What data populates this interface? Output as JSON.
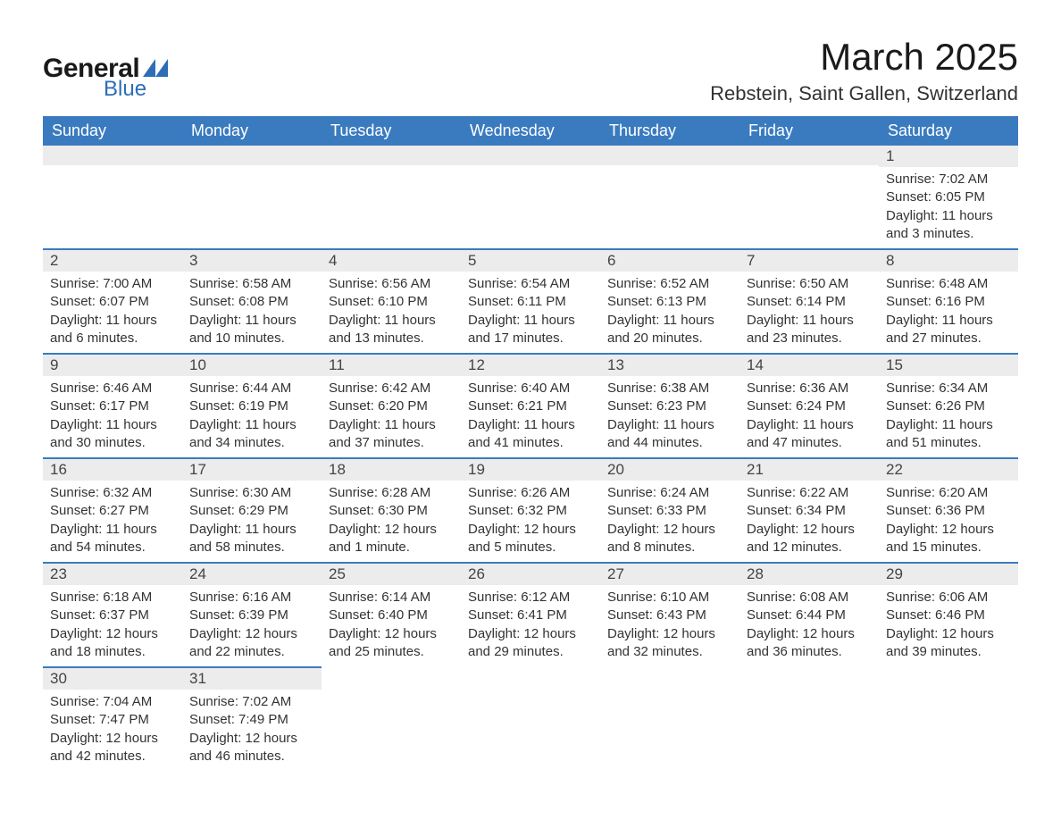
{
  "logo": {
    "text_general": "General",
    "text_blue": "Blue",
    "shape_color": "#2d6eb5"
  },
  "title": "March 2025",
  "location": "Rebstein, Saint Gallen, Switzerland",
  "colors": {
    "header_bg": "#3a7bbf",
    "header_text": "#ffffff",
    "daybar_bg": "#ececec",
    "daybar_border": "#3a7bbf",
    "body_text": "#333333",
    "page_bg": "#ffffff"
  },
  "typography": {
    "title_fontsize": 42,
    "location_fontsize": 22,
    "header_fontsize": 18,
    "daynum_fontsize": 17,
    "detail_fontsize": 15
  },
  "weekdays": [
    "Sunday",
    "Monday",
    "Tuesday",
    "Wednesday",
    "Thursday",
    "Friday",
    "Saturday"
  ],
  "weeks": [
    [
      null,
      null,
      null,
      null,
      null,
      null,
      {
        "n": "1",
        "sr": "Sunrise: 7:02 AM",
        "ss": "Sunset: 6:05 PM",
        "dl1": "Daylight: 11 hours",
        "dl2": "and 3 minutes."
      }
    ],
    [
      {
        "n": "2",
        "sr": "Sunrise: 7:00 AM",
        "ss": "Sunset: 6:07 PM",
        "dl1": "Daylight: 11 hours",
        "dl2": "and 6 minutes."
      },
      {
        "n": "3",
        "sr": "Sunrise: 6:58 AM",
        "ss": "Sunset: 6:08 PM",
        "dl1": "Daylight: 11 hours",
        "dl2": "and 10 minutes."
      },
      {
        "n": "4",
        "sr": "Sunrise: 6:56 AM",
        "ss": "Sunset: 6:10 PM",
        "dl1": "Daylight: 11 hours",
        "dl2": "and 13 minutes."
      },
      {
        "n": "5",
        "sr": "Sunrise: 6:54 AM",
        "ss": "Sunset: 6:11 PM",
        "dl1": "Daylight: 11 hours",
        "dl2": "and 17 minutes."
      },
      {
        "n": "6",
        "sr": "Sunrise: 6:52 AM",
        "ss": "Sunset: 6:13 PM",
        "dl1": "Daylight: 11 hours",
        "dl2": "and 20 minutes."
      },
      {
        "n": "7",
        "sr": "Sunrise: 6:50 AM",
        "ss": "Sunset: 6:14 PM",
        "dl1": "Daylight: 11 hours",
        "dl2": "and 23 minutes."
      },
      {
        "n": "8",
        "sr": "Sunrise: 6:48 AM",
        "ss": "Sunset: 6:16 PM",
        "dl1": "Daylight: 11 hours",
        "dl2": "and 27 minutes."
      }
    ],
    [
      {
        "n": "9",
        "sr": "Sunrise: 6:46 AM",
        "ss": "Sunset: 6:17 PM",
        "dl1": "Daylight: 11 hours",
        "dl2": "and 30 minutes."
      },
      {
        "n": "10",
        "sr": "Sunrise: 6:44 AM",
        "ss": "Sunset: 6:19 PM",
        "dl1": "Daylight: 11 hours",
        "dl2": "and 34 minutes."
      },
      {
        "n": "11",
        "sr": "Sunrise: 6:42 AM",
        "ss": "Sunset: 6:20 PM",
        "dl1": "Daylight: 11 hours",
        "dl2": "and 37 minutes."
      },
      {
        "n": "12",
        "sr": "Sunrise: 6:40 AM",
        "ss": "Sunset: 6:21 PM",
        "dl1": "Daylight: 11 hours",
        "dl2": "and 41 minutes."
      },
      {
        "n": "13",
        "sr": "Sunrise: 6:38 AM",
        "ss": "Sunset: 6:23 PM",
        "dl1": "Daylight: 11 hours",
        "dl2": "and 44 minutes."
      },
      {
        "n": "14",
        "sr": "Sunrise: 6:36 AM",
        "ss": "Sunset: 6:24 PM",
        "dl1": "Daylight: 11 hours",
        "dl2": "and 47 minutes."
      },
      {
        "n": "15",
        "sr": "Sunrise: 6:34 AM",
        "ss": "Sunset: 6:26 PM",
        "dl1": "Daylight: 11 hours",
        "dl2": "and 51 minutes."
      }
    ],
    [
      {
        "n": "16",
        "sr": "Sunrise: 6:32 AM",
        "ss": "Sunset: 6:27 PM",
        "dl1": "Daylight: 11 hours",
        "dl2": "and 54 minutes."
      },
      {
        "n": "17",
        "sr": "Sunrise: 6:30 AM",
        "ss": "Sunset: 6:29 PM",
        "dl1": "Daylight: 11 hours",
        "dl2": "and 58 minutes."
      },
      {
        "n": "18",
        "sr": "Sunrise: 6:28 AM",
        "ss": "Sunset: 6:30 PM",
        "dl1": "Daylight: 12 hours",
        "dl2": "and 1 minute."
      },
      {
        "n": "19",
        "sr": "Sunrise: 6:26 AM",
        "ss": "Sunset: 6:32 PM",
        "dl1": "Daylight: 12 hours",
        "dl2": "and 5 minutes."
      },
      {
        "n": "20",
        "sr": "Sunrise: 6:24 AM",
        "ss": "Sunset: 6:33 PM",
        "dl1": "Daylight: 12 hours",
        "dl2": "and 8 minutes."
      },
      {
        "n": "21",
        "sr": "Sunrise: 6:22 AM",
        "ss": "Sunset: 6:34 PM",
        "dl1": "Daylight: 12 hours",
        "dl2": "and 12 minutes."
      },
      {
        "n": "22",
        "sr": "Sunrise: 6:20 AM",
        "ss": "Sunset: 6:36 PM",
        "dl1": "Daylight: 12 hours",
        "dl2": "and 15 minutes."
      }
    ],
    [
      {
        "n": "23",
        "sr": "Sunrise: 6:18 AM",
        "ss": "Sunset: 6:37 PM",
        "dl1": "Daylight: 12 hours",
        "dl2": "and 18 minutes."
      },
      {
        "n": "24",
        "sr": "Sunrise: 6:16 AM",
        "ss": "Sunset: 6:39 PM",
        "dl1": "Daylight: 12 hours",
        "dl2": "and 22 minutes."
      },
      {
        "n": "25",
        "sr": "Sunrise: 6:14 AM",
        "ss": "Sunset: 6:40 PM",
        "dl1": "Daylight: 12 hours",
        "dl2": "and 25 minutes."
      },
      {
        "n": "26",
        "sr": "Sunrise: 6:12 AM",
        "ss": "Sunset: 6:41 PM",
        "dl1": "Daylight: 12 hours",
        "dl2": "and 29 minutes."
      },
      {
        "n": "27",
        "sr": "Sunrise: 6:10 AM",
        "ss": "Sunset: 6:43 PM",
        "dl1": "Daylight: 12 hours",
        "dl2": "and 32 minutes."
      },
      {
        "n": "28",
        "sr": "Sunrise: 6:08 AM",
        "ss": "Sunset: 6:44 PM",
        "dl1": "Daylight: 12 hours",
        "dl2": "and 36 minutes."
      },
      {
        "n": "29",
        "sr": "Sunrise: 6:06 AM",
        "ss": "Sunset: 6:46 PM",
        "dl1": "Daylight: 12 hours",
        "dl2": "and 39 minutes."
      }
    ],
    [
      {
        "n": "30",
        "sr": "Sunrise: 7:04 AM",
        "ss": "Sunset: 7:47 PM",
        "dl1": "Daylight: 12 hours",
        "dl2": "and 42 minutes."
      },
      {
        "n": "31",
        "sr": "Sunrise: 7:02 AM",
        "ss": "Sunset: 7:49 PM",
        "dl1": "Daylight: 12 hours",
        "dl2": "and 46 minutes."
      },
      null,
      null,
      null,
      null,
      null
    ]
  ]
}
